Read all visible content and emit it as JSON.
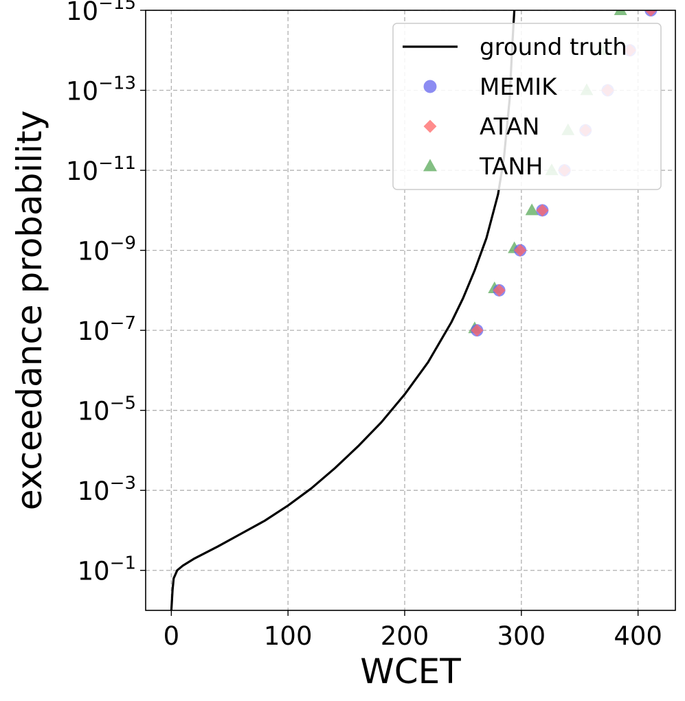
{
  "chart_data": {
    "type": "line",
    "title": "",
    "xlabel": "WCET",
    "ylabel": "exceedance probability",
    "xlim": [
      -22,
      432
    ],
    "y_scale": "log",
    "ylim_exponent": [
      -15,
      0
    ],
    "grid": true,
    "legend_position": "top-right",
    "x_ticks": [
      {
        "value": 0,
        "label": "0"
      },
      {
        "value": 100,
        "label": "100"
      },
      {
        "value": 200,
        "label": "200"
      },
      {
        "value": 300,
        "label": "300"
      },
      {
        "value": 400,
        "label": "400"
      }
    ],
    "y_ticks": [
      {
        "exponent": -1,
        "base": "10",
        "exp": "−1"
      },
      {
        "exponent": -3,
        "base": "10",
        "exp": "−3"
      },
      {
        "exponent": -5,
        "base": "10",
        "exp": "−5"
      },
      {
        "exponent": -7,
        "base": "10",
        "exp": "−7"
      },
      {
        "exponent": -9,
        "base": "10",
        "exp": "−9"
      },
      {
        "exponent": -11,
        "base": "10",
        "exp": "−11"
      },
      {
        "exponent": -13,
        "base": "10",
        "exp": "−13"
      },
      {
        "exponent": -15,
        "base": "10",
        "exp": "−15"
      }
    ],
    "series": [
      {
        "name": "ground truth",
        "kind": "line",
        "color": "#000000",
        "points": [
          [
            0,
            0.0
          ],
          [
            1,
            -0.5
          ],
          [
            2,
            -0.8
          ],
          [
            5,
            -1.0
          ],
          [
            10,
            -1.12
          ],
          [
            20,
            -1.3
          ],
          [
            40,
            -1.6
          ],
          [
            60,
            -1.92
          ],
          [
            80,
            -2.24
          ],
          [
            100,
            -2.62
          ],
          [
            120,
            -3.05
          ],
          [
            140,
            -3.55
          ],
          [
            160,
            -4.1
          ],
          [
            180,
            -4.7
          ],
          [
            200,
            -5.4
          ],
          [
            220,
            -6.2
          ],
          [
            240,
            -7.2
          ],
          [
            250,
            -7.8
          ],
          [
            260,
            -8.5
          ],
          [
            270,
            -9.3
          ],
          [
            280,
            -10.4
          ],
          [
            285,
            -11.3
          ],
          [
            290,
            -12.8
          ],
          [
            292,
            -14.0
          ],
          [
            294,
            -15.0
          ]
        ]
      },
      {
        "name": "MEMIK",
        "kind": "scatter",
        "marker": "circle",
        "color": "#6666ee",
        "points": [
          [
            262,
            -7
          ],
          [
            281,
            -8
          ],
          [
            299,
            -9
          ],
          [
            318,
            -10
          ],
          [
            337,
            -11
          ],
          [
            355,
            -12
          ],
          [
            374,
            -13
          ],
          [
            393,
            -14
          ],
          [
            411,
            -15
          ]
        ]
      },
      {
        "name": "ATAN",
        "kind": "scatter",
        "marker": "diamond",
        "color": "#ff6666",
        "points": [
          [
            262,
            -7
          ],
          [
            281,
            -8
          ],
          [
            299,
            -9
          ],
          [
            318,
            -10
          ],
          [
            337,
            -11
          ],
          [
            355,
            -12
          ],
          [
            374,
            -13
          ],
          [
            393,
            -14
          ],
          [
            411,
            -15
          ]
        ]
      },
      {
        "name": "TANH",
        "kind": "scatter",
        "marker": "triangle",
        "color": "#5aaa5a",
        "points": [
          [
            260,
            -7.05
          ],
          [
            277,
            -8.05
          ],
          [
            294,
            -9.05
          ],
          [
            309,
            -10.0
          ],
          [
            326,
            -11.0
          ],
          [
            340,
            -12.0
          ],
          [
            356,
            -13.0
          ],
          [
            369,
            -14.0
          ],
          [
            385,
            -15.0
          ]
        ]
      }
    ]
  }
}
